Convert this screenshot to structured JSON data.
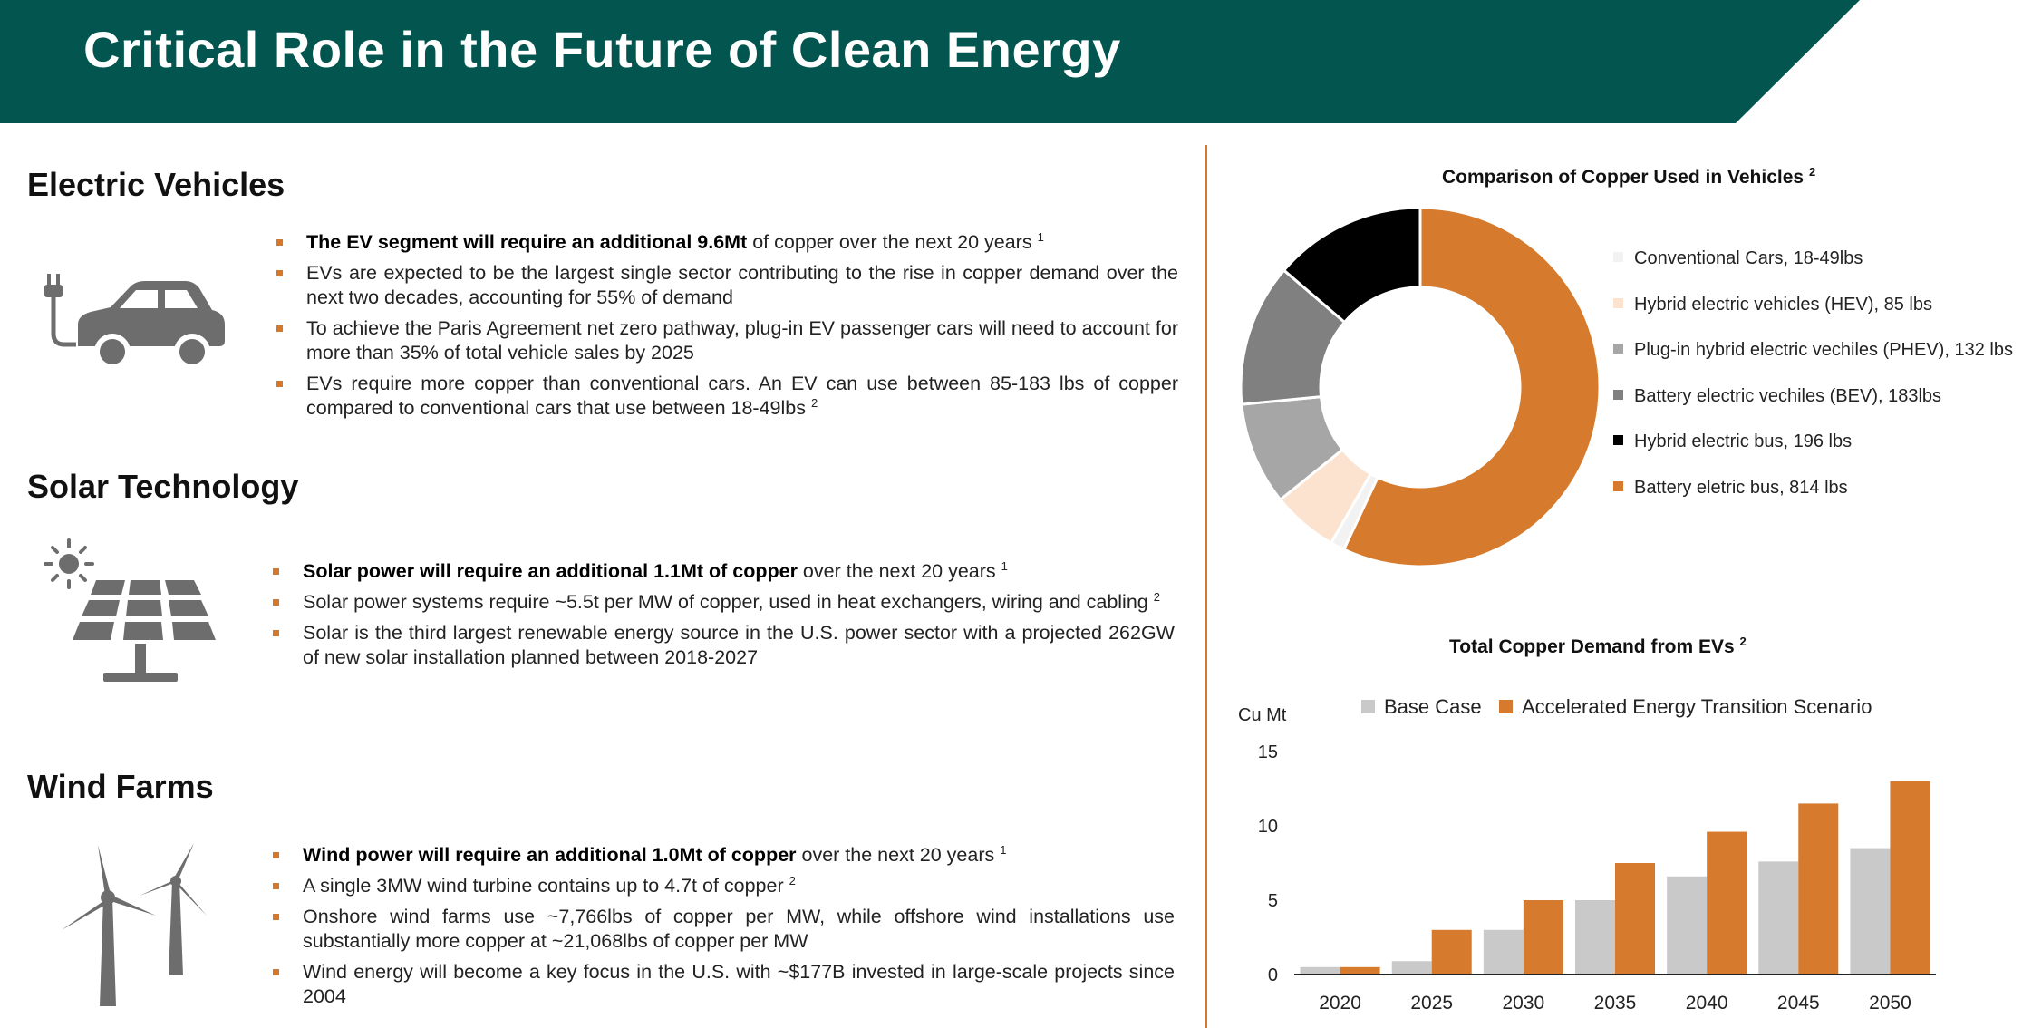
{
  "header": {
    "title": "Critical Role in the Future of Clean Energy"
  },
  "sections": {
    "ev": {
      "title": "Electric Vehicles",
      "icon": "electric-car-icon",
      "bullets": [
        {
          "bold": "The EV segment will require an additional 9.6Mt",
          "text": " of copper over the next 20 years",
          "sup": "1"
        },
        {
          "bold": "",
          "text": "EVs are expected to be the largest single sector contributing to the rise in copper demand over the next two decades, accounting for 55% of demand",
          "sup": ""
        },
        {
          "bold": "",
          "text": "To achieve the Paris Agreement net zero pathway, plug-in EV passenger cars will need to account for more than 35% of total vehicle sales by 2025",
          "sup": ""
        },
        {
          "bold": "",
          "text": "EVs require more copper than conventional cars. An EV can use between 85-183 lbs of copper compared to conventional cars that use between 18-49lbs",
          "sup": "2"
        }
      ]
    },
    "solar": {
      "title": "Solar Technology",
      "icon": "solar-panel-icon",
      "bullets": [
        {
          "bold": "Solar power will require an additional 1.1Mt of copper",
          "text": " over the next 20 years",
          "sup": "1"
        },
        {
          "bold": "",
          "text": "Solar power systems require ~5.5t per MW of copper, used in heat exchangers, wiring and cabling",
          "sup": "2"
        },
        {
          "bold": "",
          "text": "Solar is the third largest renewable energy source in the U.S. power sector with a projected 262GW of new solar installation planned between 2018-2027",
          "sup": ""
        }
      ]
    },
    "wind": {
      "title": "Wind Farms",
      "icon": "wind-turbine-icon",
      "bullets": [
        {
          "bold": "Wind power will require an additional 1.0Mt of copper",
          "text": " over the next 20 years",
          "sup": "1"
        },
        {
          "bold": "",
          "text": "A single 3MW wind turbine contains up to 4.7t of copper",
          "sup": "2"
        },
        {
          "bold": "",
          "text": "Onshore wind farms use ~7,766lbs of copper per MW, while offshore wind installations use substantially more copper at ~21,068lbs of copper per MW",
          "sup": ""
        },
        {
          "bold": "",
          "text": "Wind energy will become a key focus in the U.S. with ~$177B invested in large-scale projects since 2004",
          "sup": ""
        }
      ]
    }
  },
  "chart_data": [
    {
      "type": "pie",
      "title": "Comparison of Copper Used in Vehicles",
      "title_sup": "2",
      "donut": true,
      "legend_position": "right",
      "slices": [
        {
          "label": "Conventional Cars, 18-49lbs",
          "value": 18,
          "color": "#f2f2f2"
        },
        {
          "label": "Hybrid electric vehicles (HEV), 85 lbs",
          "value": 85,
          "color": "#fbe3d0"
        },
        {
          "label": "Plug-in hybrid electric vechiles (PHEV),  132 lbs",
          "value": 132,
          "color": "#a6a6a6"
        },
        {
          "label": "Battery electric vechiles (BEV), 183lbs",
          "value": 183,
          "color": "#808080"
        },
        {
          "label": "Hybrid electric bus, 196 lbs",
          "value": 196,
          "color": "#000000"
        },
        {
          "label": "Battery eletric bus, 814 lbs",
          "value": 814,
          "color": "#d67b2d"
        }
      ]
    },
    {
      "type": "bar",
      "title": "Total Copper Demand from EVs",
      "title_sup": "2",
      "ylabel": "Cu Mt",
      "ylim": [
        0,
        15
      ],
      "yticks": [
        0,
        5,
        10,
        15
      ],
      "categories": [
        "2020",
        "2025",
        "2030",
        "2035",
        "2040",
        "2045",
        "2050"
      ],
      "series": [
        {
          "name": "Base Case",
          "color": "#c9c9c9",
          "values": [
            0.5,
            0.9,
            3.0,
            5.0,
            6.6,
            7.6,
            8.5
          ]
        },
        {
          "name": "Accelerated Energy Transition Scenario",
          "color": "#d67b2d",
          "values": [
            0.5,
            3.0,
            5.0,
            7.5,
            9.6,
            11.5,
            13.0
          ]
        }
      ]
    }
  ]
}
